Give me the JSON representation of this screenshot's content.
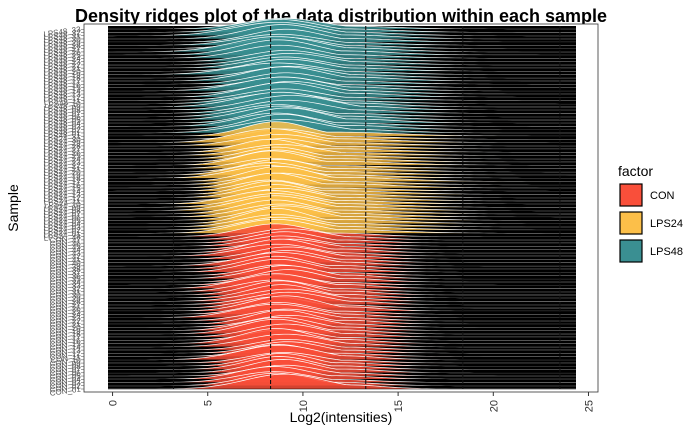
{
  "chart_data": {
    "type": "ridgeline",
    "title": "Density ridges plot of the data distribution within each sample",
    "xlabel": "Log2(intensities)",
    "ylabel": "Sample",
    "xlim": [
      -1.5,
      25.5
    ],
    "x_ticks": [
      "0",
      "5",
      "10",
      "15",
      "20",
      "25"
    ],
    "x_tick_values": [
      0,
      5,
      10,
      15,
      20,
      25
    ],
    "grid_lines_x": [
      3.2,
      8.3,
      13.3,
      18.4,
      23.5
    ],
    "background": "#000000",
    "legend": {
      "title": "factor",
      "position": "right",
      "items": [
        {
          "label": "CON",
          "color": "#F94F3A"
        },
        {
          "label": "LPS24",
          "color": "#FCBF49"
        },
        {
          "label": "LPS48",
          "color": "#3A8F92"
        }
      ]
    },
    "groups": [
      {
        "factor": "CON",
        "n_samples": 48,
        "peak_log2": 8.9,
        "spread_sd": 1.8,
        "upper_tail_to": 14
      },
      {
        "factor": "LPS24",
        "n_samples": 31,
        "peak_log2": 8.6,
        "spread_sd": 1.8,
        "upper_tail_to": 17
      },
      {
        "factor": "LPS48",
        "n_samples": 33,
        "peak_log2": 9.0,
        "spread_sd": 2.0,
        "upper_tail_to": 16
      }
    ],
    "sample_labels": [
      "CON_01",
      "CON_02",
      "CON_03",
      "CON_04",
      "CON_05",
      "CON_06",
      "CON_07",
      "CON_08",
      "CON_09",
      "CON_10",
      "CON_11",
      "CON_12",
      "CON_13",
      "CON_14",
      "CON_15",
      "CON_16",
      "CON_17",
      "CON_18",
      "CON_19",
      "CON_20",
      "CON_21",
      "CON_22",
      "CON_23",
      "CON_24",
      "CON_25",
      "CON_26",
      "CON_27",
      "CON_28",
      "CON_29",
      "CON_30",
      "CON_31",
      "CON_32",
      "CON_33",
      "CON_34",
      "CON_35",
      "CON_36",
      "CON_37",
      "CON_38",
      "CON_39",
      "CON_40",
      "CON_41",
      "CON_42",
      "CON_43",
      "CON_44",
      "CON_45",
      "CON_46",
      "CON_47",
      "CON_48",
      "LPS24_01",
      "LPS24_02",
      "LPS24_03",
      "LPS24_04",
      "LPS24_05",
      "LPS24_06",
      "LPS24_07",
      "LPS24_08",
      "LPS24_09",
      "LPS24_10",
      "LPS24_11",
      "LPS24_12",
      "LPS24_13",
      "LPS24_14",
      "LPS24_15",
      "LPS24_16",
      "LPS24_17",
      "LPS24_18",
      "LPS24_19",
      "LPS24_20",
      "LPS24_21",
      "LPS24_22",
      "LPS24_23",
      "LPS24_24",
      "LPS24_25",
      "LPS24_26",
      "LPS24_27",
      "LPS24_28",
      "LPS24_29",
      "LPS24_30",
      "LPS24_31",
      "LPS48_01",
      "LPS48_02",
      "LPS48_03",
      "LPS48_04",
      "LPS48_05",
      "LPS48_06",
      "LPS48_07",
      "LPS48_08",
      "LPS48_09",
      "LPS48_10",
      "LPS48_11",
      "LPS48_12",
      "LPS48_13",
      "LPS48_14",
      "LPS48_15",
      "LPS48_16",
      "LPS48_17",
      "LPS48_18",
      "LPS48_19",
      "LPS48_20",
      "LPS48_21",
      "LPS48_22",
      "LPS48_23",
      "LPS48_24",
      "LPS48_25",
      "LPS48_26",
      "LPS48_27",
      "LPS48_28",
      "LPS48_29",
      "LPS48_30",
      "LPS48_31",
      "LPS48_32",
      "LPS48_33"
    ]
  }
}
